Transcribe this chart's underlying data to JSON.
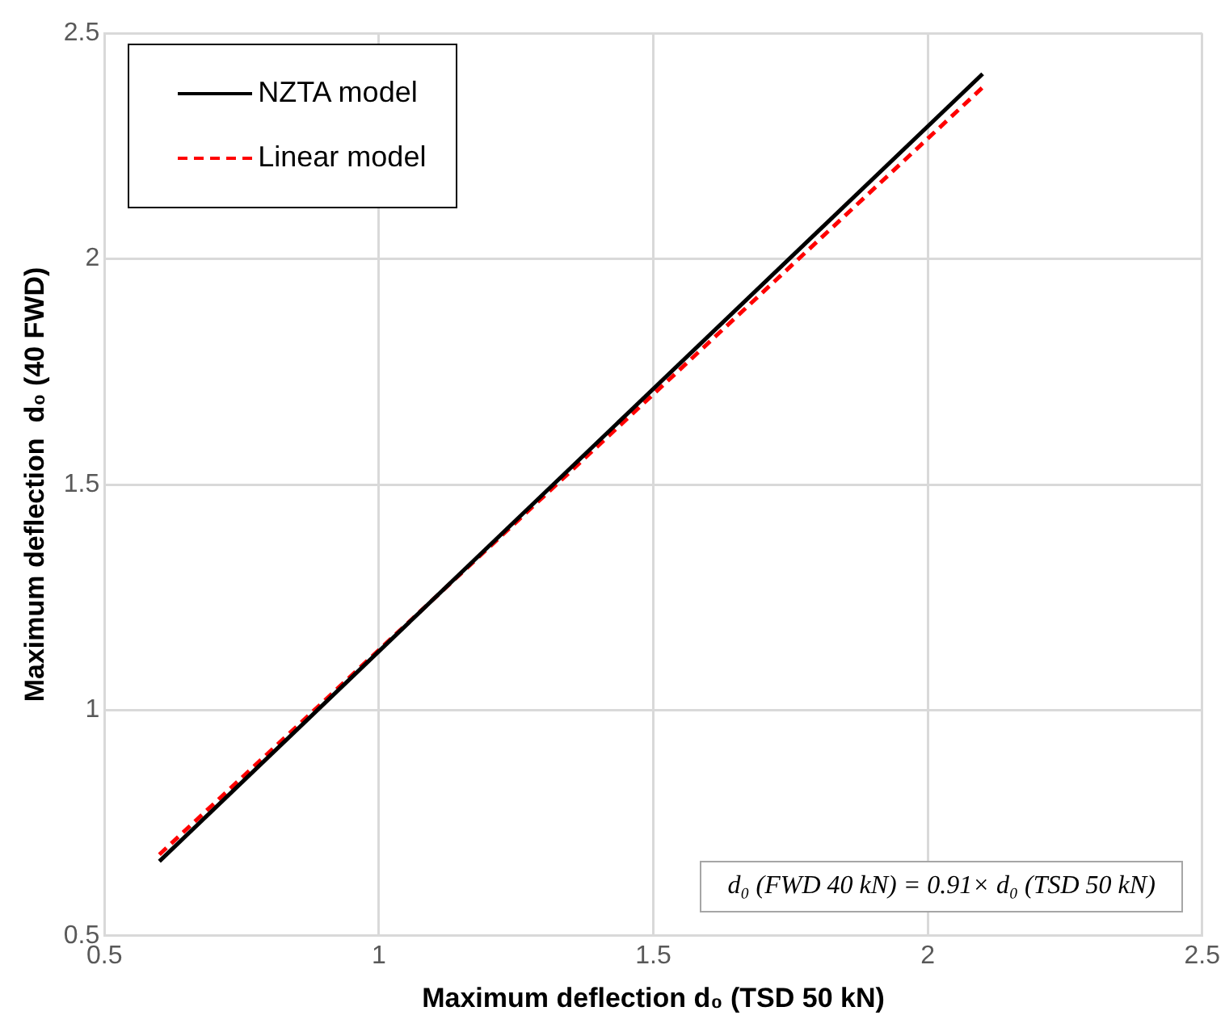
{
  "chart_data": {
    "type": "line",
    "xlabel": "Maximum deflection d₀ (TSD 50 kN)",
    "ylabel": "Maximum deflection  d₀ (40 FWD)",
    "x": [
      0.6,
      2.1
    ],
    "series": [
      {
        "name": "NZTA model",
        "color": "#000000",
        "values": [
          0.665,
          2.41
        ],
        "line_style": "solid"
      },
      {
        "name": "Linear model",
        "color": "#ff0000",
        "values": [
          0.68,
          2.38
        ],
        "line_style": "dashed"
      }
    ],
    "xlim": [
      0.5,
      2.5
    ],
    "xticks": [
      0.5,
      1,
      1.5,
      2,
      2.5
    ],
    "ylim": [
      0.5,
      2.5
    ],
    "yticks": [
      0.5,
      1,
      1.5,
      2,
      2.5
    ],
    "grid": true,
    "legend": "top left",
    "marker": "none",
    "annotations": [
      "d₀ (FWD 40 kN) = 0.91× d₀ (TSD 50 kN)"
    ]
  }
}
